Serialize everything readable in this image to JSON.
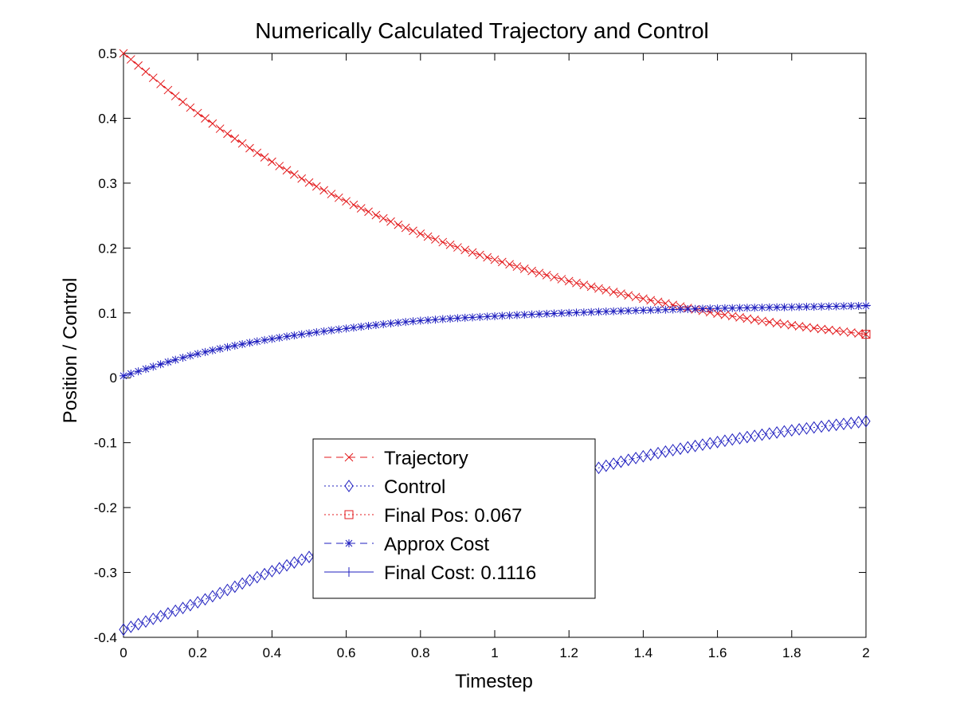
{
  "chart_data": {
    "type": "line",
    "title": "Numerically Calculated Trajectory and Control",
    "xlabel": "Timestep",
    "ylabel": "Position / Control",
    "xlim": [
      0,
      2
    ],
    "ylim": [
      -0.4,
      0.5
    ],
    "x_ticks": [
      "0",
      "0.2",
      "0.4",
      "0.6",
      "0.8",
      "1",
      "1.2",
      "1.4",
      "1.6",
      "1.8",
      "2"
    ],
    "y_ticks": [
      "-0.4",
      "-0.3",
      "-0.2",
      "-0.1",
      "0",
      "0.1",
      "0.2",
      "0.3",
      "0.4",
      "0.5"
    ],
    "grid": false,
    "legend_position": "lower-center",
    "series": [
      {
        "name": "Trajectory",
        "color": "#e31a1c",
        "line_style": "dashed",
        "marker": "x",
        "x": [
          0,
          0.2,
          0.4,
          0.6,
          0.8,
          1.0,
          1.2,
          1.4,
          1.6,
          1.8,
          2.0
        ],
        "y": [
          0.5,
          0.408,
          0.333,
          0.272,
          0.222,
          0.182,
          0.149,
          0.122,
          0.099,
          0.081,
          0.067
        ]
      },
      {
        "name": "Control",
        "color": "#1f1fbf",
        "line_style": "dotted",
        "marker": "diamond",
        "x": [
          0,
          0.2,
          0.4,
          0.6,
          0.8,
          1.0,
          1.2,
          1.4,
          1.6,
          1.8,
          2.0
        ],
        "y": [
          -0.388,
          -0.346,
          -0.298,
          -0.256,
          -0.222,
          -0.188,
          -0.152,
          -0.121,
          -0.099,
          -0.081,
          -0.067
        ]
      },
      {
        "name": "Final Pos:  0.067",
        "color": "#e31a1c",
        "line_style": "dotted",
        "marker": "square",
        "x": [
          2.0
        ],
        "y": [
          0.067
        ]
      },
      {
        "name": "Approx Cost",
        "color": "#1f1fbf",
        "line_style": "dashed",
        "marker": "asterisk",
        "x": [
          0,
          0.2,
          0.4,
          0.6,
          0.8,
          1.0,
          1.2,
          1.4,
          1.6,
          1.8,
          2.0
        ],
        "y": [
          0.003,
          0.037,
          0.06,
          0.076,
          0.088,
          0.095,
          0.1,
          0.104,
          0.107,
          0.109,
          0.111
        ]
      },
      {
        "name": "Final Cost:  0.1116",
        "color": "#1f1fbf",
        "line_style": "solid",
        "marker": "plus",
        "x": [
          2.0
        ],
        "y": [
          0.1116
        ]
      }
    ]
  }
}
